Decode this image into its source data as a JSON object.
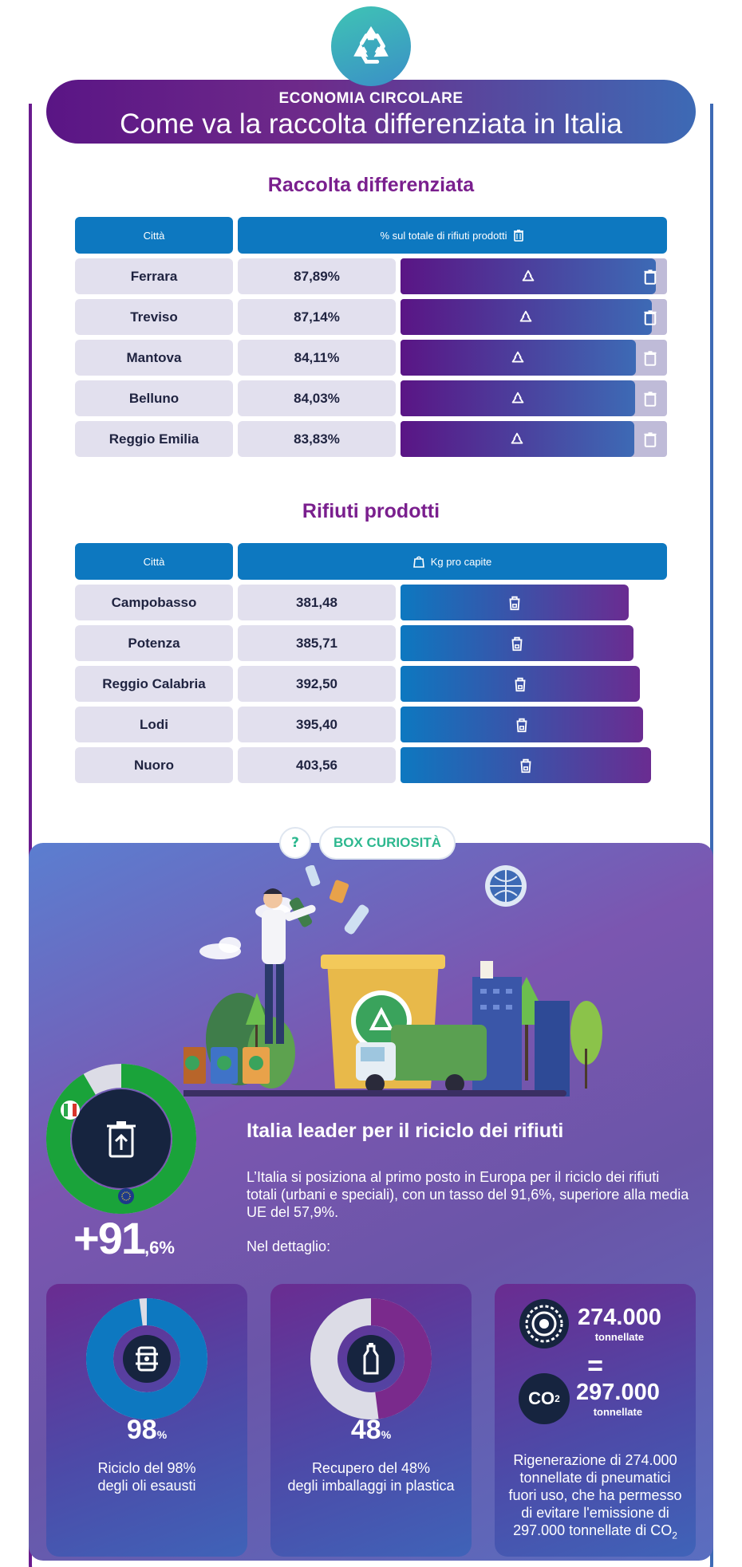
{
  "header": {
    "kicker": "ECONOMIA CIRCOLARE",
    "title": "Come va la raccolta differenziata in Italia"
  },
  "table1": {
    "title": "Raccolta differenziata",
    "col_city": "Città",
    "col_value": "% sul totale di rifiuti prodotti",
    "rows": [
      {
        "city": "Ferrara",
        "value": "87,89%",
        "pct": 87.89
      },
      {
        "city": "Treviso",
        "value": "87,14%",
        "pct": 87.14
      },
      {
        "city": "Mantova",
        "value": "84,11%",
        "pct": 84.11
      },
      {
        "city": "Belluno",
        "value": "84,03%",
        "pct": 84.03
      },
      {
        "city": "Reggio Emilia",
        "value": "83,83%",
        "pct": 83.83
      }
    ]
  },
  "table2": {
    "title": "Rifiuti prodotti",
    "col_city": "Città",
    "col_value": "Kg pro capite",
    "rows": [
      {
        "city": "Campobasso",
        "value": "381,48",
        "kg": 381.48
      },
      {
        "city": "Potenza",
        "value": "385,71",
        "kg": 385.71
      },
      {
        "city": "Reggio Calabria",
        "value": "392,50",
        "kg": 392.5
      },
      {
        "city": "Lodi",
        "value": "395,40",
        "kg": 395.4
      },
      {
        "city": "Nuoro",
        "value": "403,56",
        "kg": 403.56
      }
    ]
  },
  "curiosity": {
    "badge_q": "?",
    "badge_label": "BOX CURIOSITÀ",
    "main_pct_int": "+91",
    "main_pct_dec": ",6%",
    "main_fraction": 0.916,
    "lead_title": "Italia leader per il riciclo dei rifiuti",
    "lead_text": "L’Italia si posiziona al primo posto in Europa per il riciclo dei rifiuti totali (urbani e speciali), con un tasso del 91,6%, superiore alla media UE del 57,9%.",
    "lead_sub": "Nel dettaglio:"
  },
  "cards": [
    {
      "pct": "98",
      "pct_unit": "%",
      "fraction": 0.98,
      "caption1": "Riciclo del 98%",
      "caption2": "degli oli esausti",
      "icon": "oil-barrel-icon"
    },
    {
      "pct": "48",
      "pct_unit": "%",
      "fraction": 0.48,
      "caption1": "Recupero del 48%",
      "caption2": "degli imballaggi in plastica",
      "icon": "plastic-bottle-icon"
    }
  ],
  "tyres": {
    "num1": "274.000",
    "unit1": "tonnellate",
    "equals": "=",
    "co2_label": "CO",
    "co2_sub": "2",
    "num2": "297.000",
    "unit2": "tonnellate",
    "caption": [
      "Rigenerazione di 274.000",
      "tonnellate di pneumatici",
      "fuori uso, che ha permesso",
      "di evitare l'emissione di"
    ],
    "caption_last": "297.000 tonnellate di CO",
    "caption_last_sub": "2"
  },
  "colors": {
    "purple": "#5a1585",
    "blue": "#0d78c0",
    "green": "#2db88f"
  }
}
